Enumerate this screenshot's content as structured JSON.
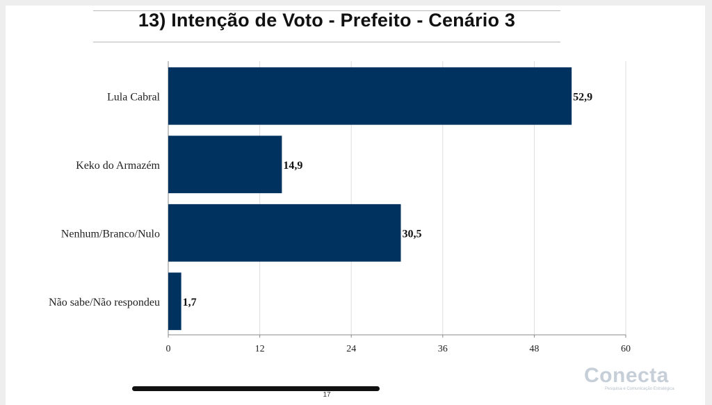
{
  "page": {
    "title": "13) Intenção de Voto - Prefeito - Cenário 3",
    "page_number": "17",
    "logo": {
      "name": "Conecta",
      "tagline": "Pesquisa e Comunicação Estratégica"
    }
  },
  "colors": {
    "bar": "#00325f",
    "grid": "#dddddd",
    "axis": "#888888"
  },
  "chart_data": {
    "type": "bar",
    "orientation": "horizontal",
    "title": "13) Intenção de Voto - Prefeito - Cenário 3",
    "categories": [
      "Lula Cabral",
      "Keko do Armazém",
      "Nenhum/Branco/Nulo",
      "Não sabe/Não respondeu"
    ],
    "values": [
      52.9,
      14.9,
      30.5,
      1.7
    ],
    "value_labels": [
      "52,9",
      "14,9",
      "30,5",
      "1,7"
    ],
    "xlim": [
      0,
      60
    ],
    "xticks": [
      0,
      12,
      24,
      36,
      48,
      60
    ],
    "xlabel": "",
    "ylabel": "",
    "grid": true,
    "legend": "none"
  }
}
